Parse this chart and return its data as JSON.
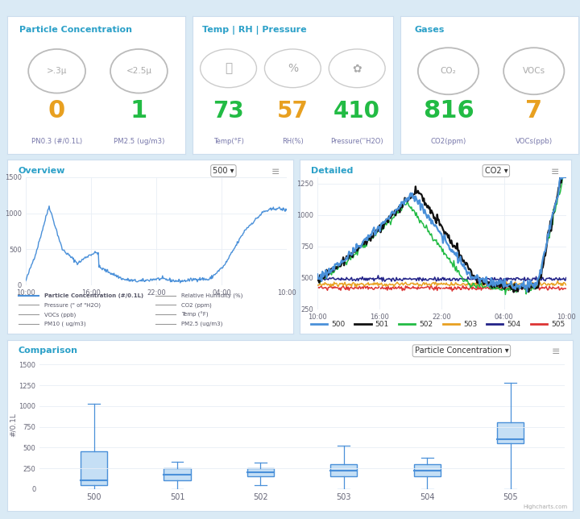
{
  "bg_color": "#daeaf5",
  "panel_color": "#ffffff",
  "title_color": "#2ba0c8",
  "label_color": "#7777aa",
  "green_color": "#22bb44",
  "orange_color": "#e8a020",
  "pc_title": "Particle Concentration",
  "pc_icon1": ">.3μ",
  "pc_val1": "0",
  "pc_label1": "PN0.3 (#/0.1L)",
  "pc_val1_color": "#e8a020",
  "pc_icon2": "<2.5μ",
  "pc_val2": "1",
  "pc_label2": "PM2.5 (ug/m3)",
  "pc_val2_color": "#22bb44",
  "trh_title": "Temp | RH | Pressure",
  "trh_val1": "73",
  "trh_label1": "Temp(°F)",
  "trh_val1_color": "#22bb44",
  "trh_val2": "57",
  "trh_label2": "RH(%)",
  "trh_val2_color": "#e8a020",
  "trh_val3": "410",
  "trh_label3": "Pressure(''H2O)",
  "trh_val3_color": "#22bb44",
  "gas_title": "Gases",
  "gas_val1": "816",
  "gas_label1": "CO2(ppm)",
  "gas_val1_color": "#22bb44",
  "gas_val2": "7",
  "gas_label2": "VOCs(ppb)",
  "gas_val2_color": "#e8a020",
  "overview_title": "Overview",
  "overview_dropdown": "500",
  "overview_xticks": [
    "10:00",
    "16:00",
    "22:00",
    "04:00",
    "10:00"
  ],
  "overview_yticks": [
    0,
    500,
    1000,
    1500
  ],
  "overview_legend_col1": [
    [
      "Particle Concentration (#/0.1L)",
      "#4a90d9",
      true
    ],
    [
      "Pressure (\" of \"H2O)",
      "#999999",
      false
    ],
    [
      "VOCs (ppb)",
      "#999999",
      false
    ],
    [
      "PM10 ( ug/m3)",
      "#999999",
      false
    ]
  ],
  "overview_legend_col2": [
    [
      "Relative Humidity (%)",
      "#999999",
      false
    ],
    [
      "CO2 (ppm)",
      "#999999",
      false
    ],
    [
      "Temp (°F)",
      "#999999",
      false
    ],
    [
      "PM2.5 (ug/m3)",
      "#999999",
      false
    ]
  ],
  "detailed_title": "Detailed",
  "detailed_dropdown": "CO2",
  "detailed_xticks": [
    "10:00",
    "16:00",
    "22:00",
    "04:00",
    "10:00"
  ],
  "detailed_yticks": [
    250,
    500,
    750,
    1000,
    1250
  ],
  "detailed_series_labels": [
    "500",
    "501",
    "502",
    "503",
    "504",
    "505"
  ],
  "detailed_series_colors": [
    "#4a90d9",
    "#111111",
    "#22bb44",
    "#e8a020",
    "#222288",
    "#dd3333"
  ],
  "comparison_title": "Comparison",
  "comparison_dropdown": "Particle Concentration",
  "comparison_ylabel": "#/0.1L",
  "comparison_yticks": [
    0,
    250,
    500,
    750,
    1000,
    1250,
    1500
  ],
  "comparison_categories": [
    "500",
    "501",
    "502",
    "503",
    "504",
    "505"
  ],
  "boxplot_data": {
    "500": {
      "min": 0,
      "q1": 50,
      "median": 100,
      "q3": 450,
      "max": 1025
    },
    "501": {
      "min": 0,
      "q1": 100,
      "median": 170,
      "q3": 250,
      "max": 330
    },
    "502": {
      "min": 50,
      "q1": 150,
      "median": 200,
      "q3": 250,
      "max": 320
    },
    "503": {
      "min": 0,
      "q1": 150,
      "median": 225,
      "q3": 300,
      "max": 520
    },
    "504": {
      "min": 0,
      "q1": 150,
      "median": 225,
      "q3": 300,
      "max": 380
    },
    "505": {
      "min": 0,
      "q1": 550,
      "median": 600,
      "q3": 800,
      "max": 1280
    }
  },
  "box_fill": "#c5dff5",
  "box_edge": "#4a90d9"
}
